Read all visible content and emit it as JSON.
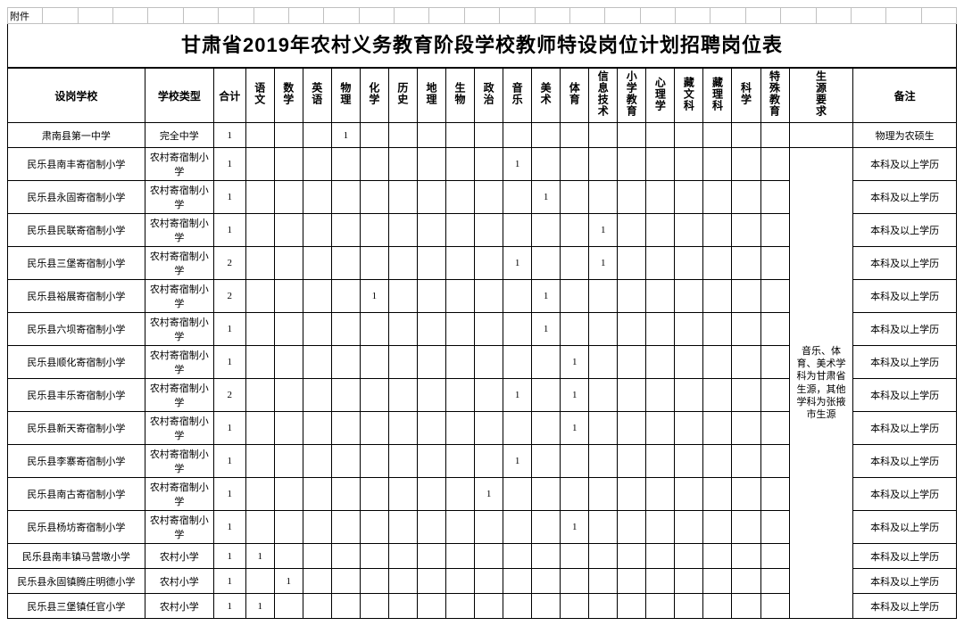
{
  "attachment_label": "附件",
  "title": "甘肃省2019年农村义务教育阶段学校教师特设岗位计划招聘岗位表",
  "headers": {
    "school": "设岗学校",
    "type": "学校类型",
    "total": "合计",
    "subjects": [
      "语文",
      "数学",
      "英语",
      "物理",
      "化学",
      "历史",
      "地理",
      "生物",
      "政治",
      "音乐",
      "美术",
      "体育",
      "信息技术",
      "小学教育",
      "心理学",
      "藏文科",
      "藏理科",
      "科学",
      "特殊教育",
      "生源要求"
    ],
    "note": "备注"
  },
  "source_merged_text": "音乐、体育、美术学科为甘肃省生源，其他学科为张掖市生源",
  "rows": [
    {
      "school": "肃南县第一中学",
      "type": "完全中学",
      "total": "1",
      "cells": {
        "3": "1"
      },
      "src": "",
      "note": "物理为农硕生"
    },
    {
      "school": "民乐县南丰寄宿制小学",
      "type": "农村寄宿制小学",
      "total": "1",
      "cells": {
        "9": "1"
      },
      "note": "本科及以上学历"
    },
    {
      "school": "民乐县永固寄宿制小学",
      "type": "农村寄宿制小学",
      "total": "1",
      "cells": {
        "10": "1"
      },
      "note": "本科及以上学历"
    },
    {
      "school": "民乐县民联寄宿制小学",
      "type": "农村寄宿制小学",
      "total": "1",
      "cells": {
        "12": "1"
      },
      "note": "本科及以上学历"
    },
    {
      "school": "民乐县三堡寄宿制小学",
      "type": "农村寄宿制小学",
      "total": "2",
      "cells": {
        "9": "1",
        "12": "1"
      },
      "note": "本科及以上学历"
    },
    {
      "school": "民乐县裕展寄宿制小学",
      "type": "农村寄宿制小学",
      "total": "2",
      "cells": {
        "4": "1",
        "10": "1"
      },
      "note": "本科及以上学历"
    },
    {
      "school": "民乐县六坝寄宿制小学",
      "type": "农村寄宿制小学",
      "total": "1",
      "cells": {
        "10": "1"
      },
      "note": "本科及以上学历"
    },
    {
      "school": "民乐县顺化寄宿制小学",
      "type": "农村寄宿制小学",
      "total": "1",
      "cells": {
        "11": "1"
      },
      "note": "本科及以上学历"
    },
    {
      "school": "民乐县丰乐寄宿制小学",
      "type": "农村寄宿制小学",
      "total": "2",
      "cells": {
        "9": "1",
        "11": "1"
      },
      "note": "本科及以上学历"
    },
    {
      "school": "民乐县新天寄宿制小学",
      "type": "农村寄宿制小学",
      "total": "1",
      "cells": {
        "11": "1"
      },
      "note": "本科及以上学历"
    },
    {
      "school": "民乐县李寨寄宿制小学",
      "type": "农村寄宿制小学",
      "total": "1",
      "cells": {
        "9": "1"
      },
      "note": "本科及以上学历"
    },
    {
      "school": "民乐县南古寄宿制小学",
      "type": "农村寄宿制小学",
      "total": "1",
      "cells": {
        "8": "1"
      },
      "note": "本科及以上学历"
    },
    {
      "school": "民乐县杨坊寄宿制小学",
      "type": "农村寄宿制小学",
      "total": "1",
      "cells": {
        "11": "1"
      },
      "note": "本科及以上学历"
    },
    {
      "school": "民乐县南丰镇马营墩小学",
      "type": "农村小学",
      "total": "1",
      "cells": {
        "0": "1"
      },
      "note": "本科及以上学历"
    },
    {
      "school": "民乐县永固镇腾庄明德小学",
      "type": "农村小学",
      "total": "1",
      "cells": {
        "1": "1"
      },
      "note": "本科及以上学历"
    },
    {
      "school": "民乐县三堡镇任官小学",
      "type": "农村小学",
      "total": "1",
      "cells": {
        "0": "1"
      },
      "note": "本科及以上学历"
    }
  ],
  "subject_count": 19,
  "top_grid_cols": 27
}
